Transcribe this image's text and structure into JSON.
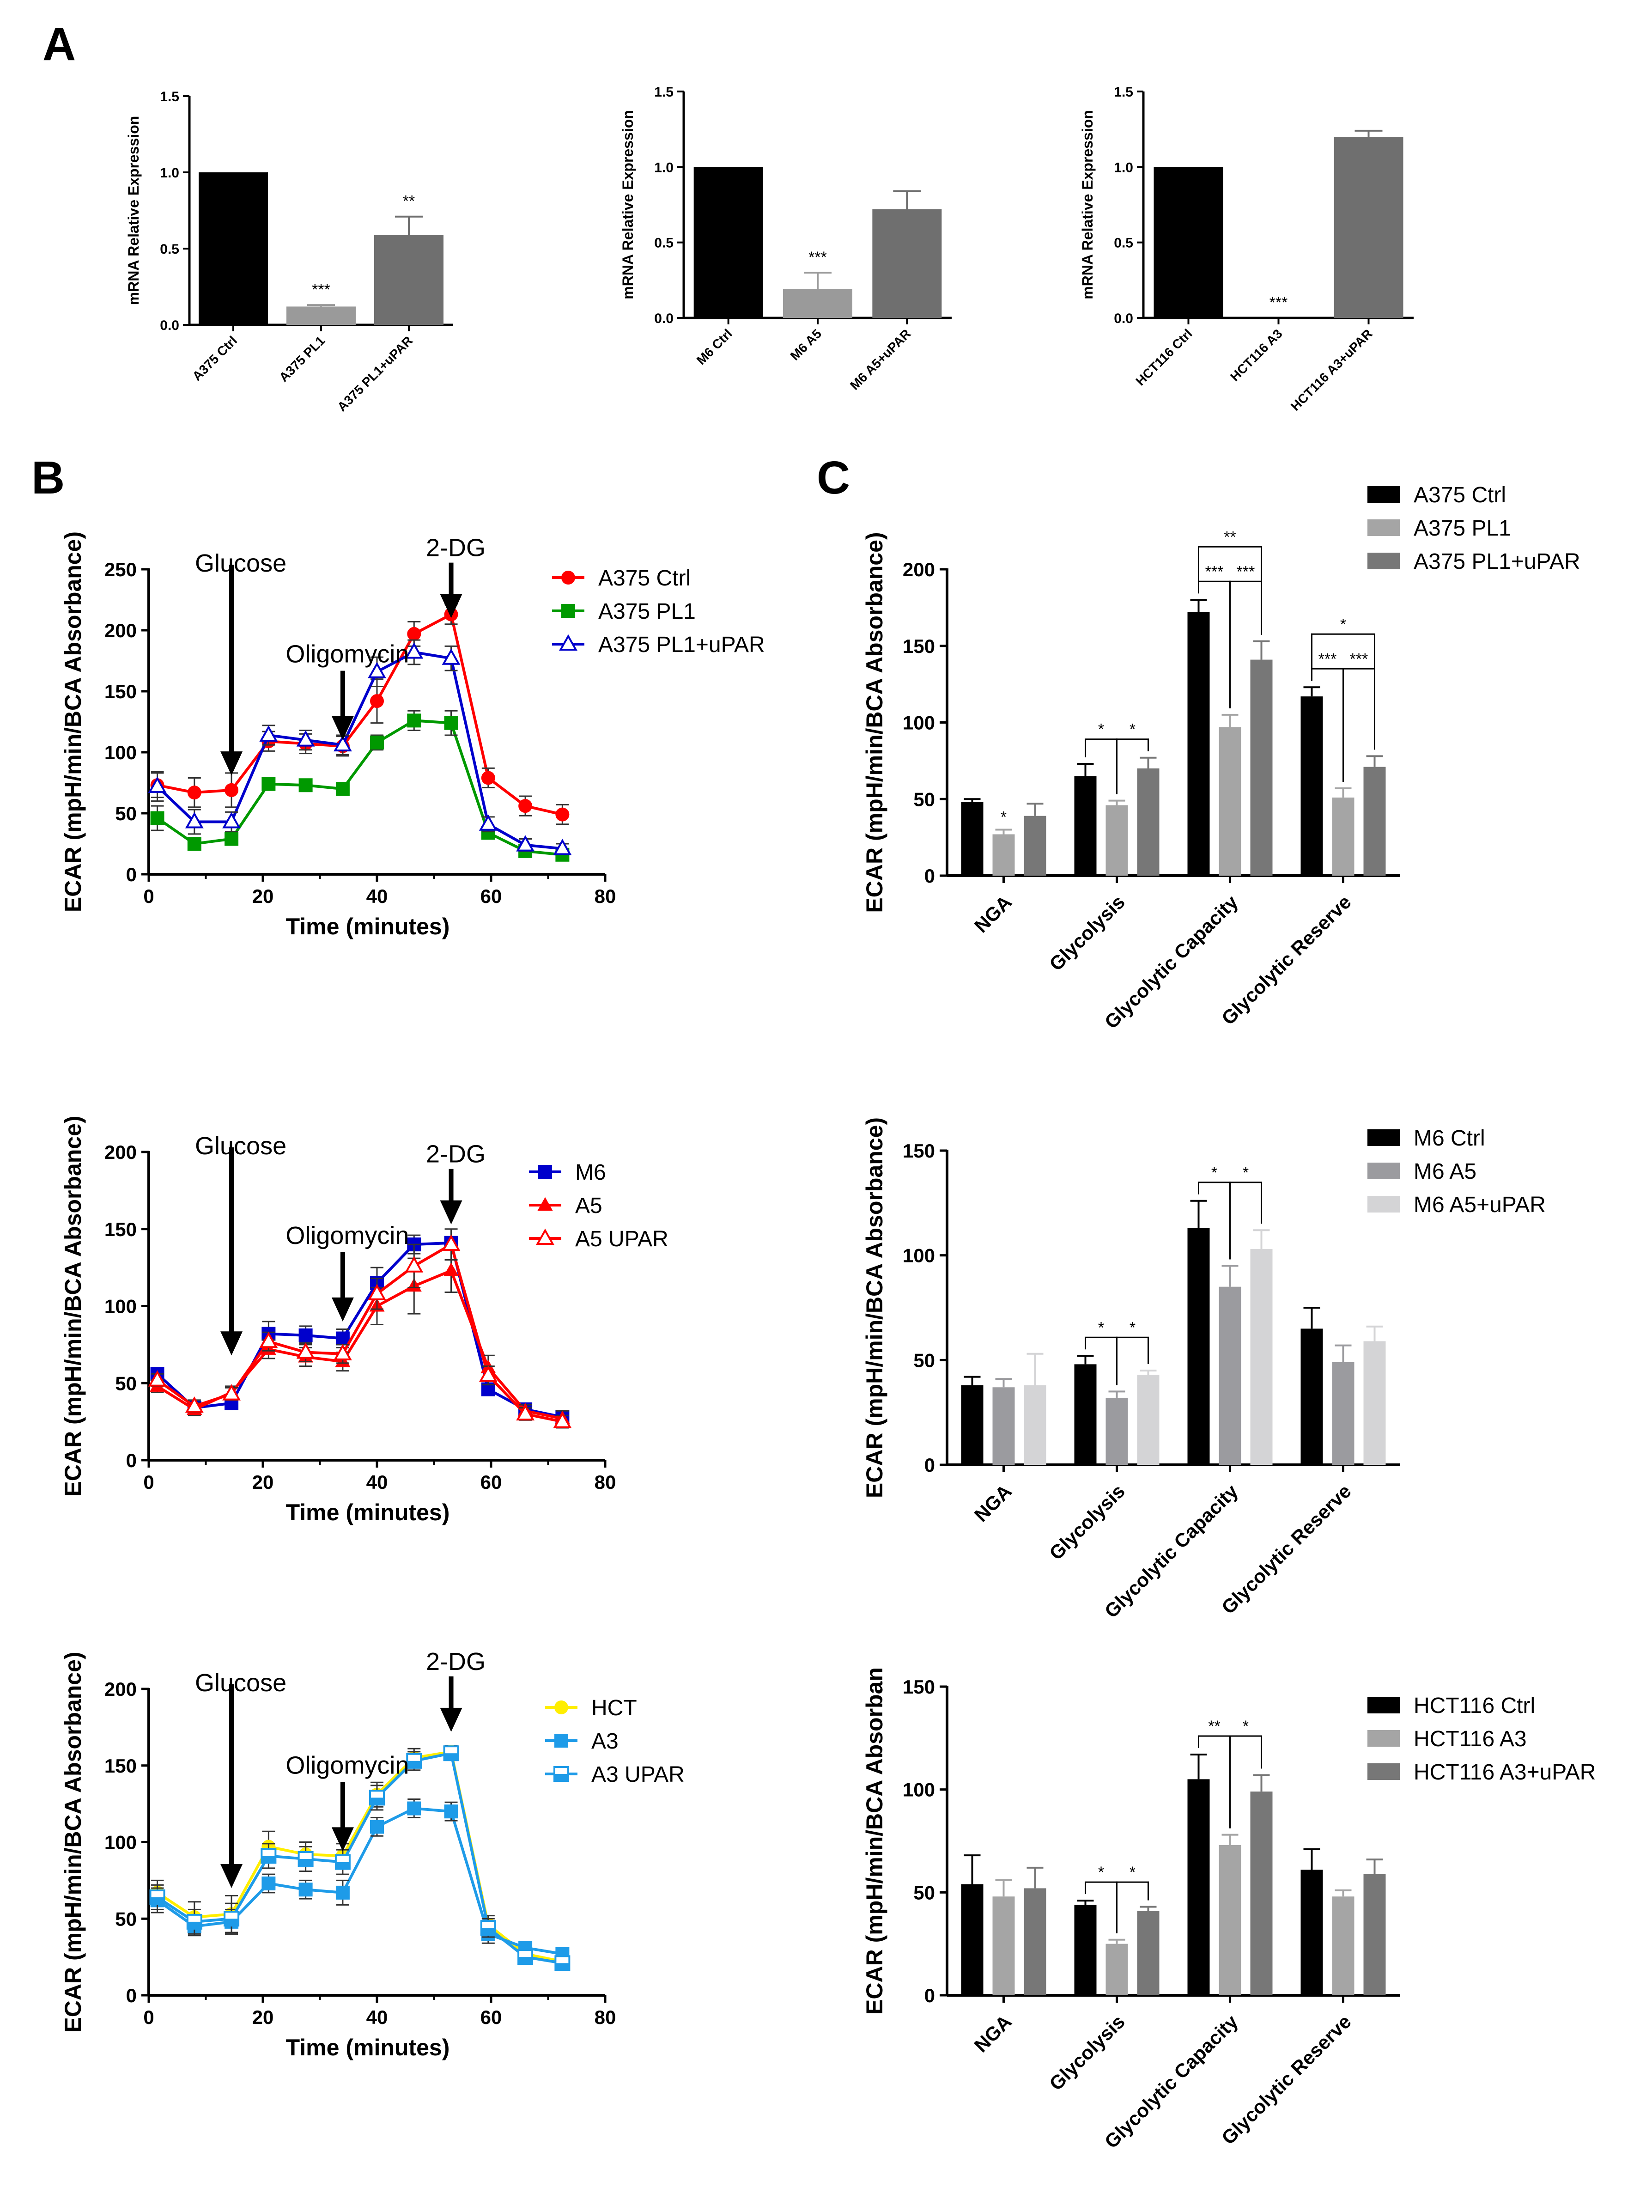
{
  "panel_labels": [
    "A",
    "B",
    "C"
  ],
  "chart_data": [
    {
      "id": "a1",
      "type": "bar",
      "ylabel": "mRNA Relative Expression",
      "ylim": [
        0,
        1.5
      ],
      "yticks": [
        "0.0",
        "0.5",
        "1.0",
        "1.5"
      ],
      "categories": [
        "A375 Ctrl",
        "A375 PL1",
        "A375 PL1+uPAR"
      ],
      "values": [
        1.0,
        0.12,
        0.59
      ],
      "errors": [
        0,
        0.01,
        0.12
      ],
      "colors": [
        "#000000",
        "#9a9a9a",
        "#6f6f6f"
      ],
      "significance": [
        "",
        "***",
        "**"
      ]
    },
    {
      "id": "a2",
      "type": "bar",
      "ylabel": "mRNA Relative Expression",
      "ylim": [
        0,
        1.5
      ],
      "yticks": [
        "0.0",
        "0.5",
        "1.0",
        "1.5"
      ],
      "categories": [
        "M6 Ctrl",
        "M6 A5",
        "M6 A5+uPAR"
      ],
      "values": [
        1.0,
        0.19,
        0.72
      ],
      "errors": [
        0,
        0.11,
        0.12
      ],
      "colors": [
        "#000000",
        "#9a9a9a",
        "#6f6f6f"
      ],
      "significance": [
        "",
        "***",
        ""
      ]
    },
    {
      "id": "a3",
      "type": "bar",
      "ylabel": "mRNA Relative Expression",
      "ylim": [
        0,
        1.5
      ],
      "yticks": [
        "0.0",
        "0.5",
        "1.0",
        "1.5"
      ],
      "categories": [
        "HCT116 Ctrl",
        "HCT116 A3",
        "HCT116 A3+uPAR"
      ],
      "values": [
        1.0,
        0.0,
        1.2
      ],
      "errors": [
        0,
        0,
        0.04
      ],
      "colors": [
        "#000000",
        "#9a9a9a",
        "#6f6f6f"
      ],
      "significance": [
        "",
        "***",
        ""
      ]
    },
    {
      "id": "b1",
      "type": "line",
      "xlabel": "Time (minutes)",
      "ylabel": "ECAR (mpH/min/BCA Absorbance)",
      "xlim": [
        0,
        80
      ],
      "ylim": [
        0,
        250
      ],
      "xticks": [
        "0",
        "20",
        "40",
        "60",
        "80"
      ],
      "yticks": [
        "0",
        "50",
        "100",
        "150",
        "200",
        "250"
      ],
      "x": [
        1.5,
        8,
        14.5,
        21,
        27.5,
        34,
        40,
        46.5,
        53,
        59.5,
        66,
        72.5
      ],
      "series": [
        {
          "name": "A375 Ctrl",
          "color": "#ff0000",
          "marker": "circle",
          "values": [
            73,
            67,
            69,
            109,
            107,
            105,
            142,
            197,
            213,
            79,
            56,
            49
          ],
          "errors": [
            10,
            12,
            14,
            8,
            8,
            8,
            18,
            10,
            8,
            8,
            8,
            8
          ]
        },
        {
          "name": "A375 PL1",
          "color": "#009900",
          "marker": "square",
          "values": [
            46,
            25,
            29,
            74,
            73,
            70,
            108,
            126,
            124,
            34,
            19,
            16
          ],
          "errors": [
            10,
            5,
            5,
            5,
            5,
            5,
            6,
            8,
            10,
            5,
            4,
            4
          ]
        },
        {
          "name": "A375 PL1+uPAR",
          "color": "#0000cc",
          "marker": "triangle-open",
          "values": [
            72,
            43,
            43,
            114,
            110,
            106,
            166,
            182,
            177,
            41,
            24,
            21
          ],
          "errors": [
            12,
            10,
            8,
            8,
            8,
            8,
            12,
            10,
            10,
            6,
            5,
            4
          ]
        }
      ],
      "annotations": [
        {
          "text": "Glucose",
          "x": 14.5,
          "y": 81
        },
        {
          "text": "Oligomycin",
          "x": 34,
          "y": 110
        },
        {
          "text": "2-DG",
          "x": 53,
          "y": 210
        }
      ]
    },
    {
      "id": "b2",
      "type": "line",
      "xlabel": "Time (minutes)",
      "ylabel": "ECAR (mpH/min/BCA Absorbance)",
      "xlim": [
        0,
        80
      ],
      "ylim": [
        0,
        200
      ],
      "xticks": [
        "0",
        "20",
        "40",
        "60",
        "80"
      ],
      "yticks": [
        "0",
        "50",
        "100",
        "150",
        "200"
      ],
      "x": [
        1.5,
        8,
        14.5,
        21,
        27.5,
        34,
        40,
        46.5,
        53,
        59.5,
        66,
        72.5
      ],
      "series": [
        {
          "name": "M6",
          "color": "#0000cc",
          "marker": "square",
          "values": [
            56,
            34,
            37,
            82,
            81,
            79,
            115,
            140,
            141,
            46,
            33,
            28
          ],
          "errors": [
            4,
            4,
            4,
            8,
            6,
            6,
            10,
            6,
            4,
            4,
            4,
            4
          ]
        },
        {
          "name": "A5",
          "color": "#ff0000",
          "marker": "triangle",
          "values": [
            48,
            33,
            44,
            72,
            67,
            64,
            100,
            113,
            123,
            60,
            32,
            27
          ],
          "errors": [
            4,
            4,
            4,
            6,
            6,
            6,
            12,
            18,
            14,
            8,
            4,
            5
          ]
        },
        {
          "name": "A5 UPAR",
          "color": "#ff0000",
          "marker": "triangle-open",
          "values": [
            52,
            35,
            43,
            77,
            70,
            69,
            108,
            126,
            140,
            55,
            30,
            25
          ],
          "errors": [
            4,
            4,
            4,
            6,
            6,
            6,
            10,
            14,
            10,
            6,
            4,
            4
          ]
        }
      ],
      "annotations": [
        {
          "text": "Glucose",
          "x": 14.5,
          "y": 68
        },
        {
          "text": "Oligomycin",
          "x": 34,
          "y": 90
        },
        {
          "text": "2-DG",
          "x": 53,
          "y": 153
        }
      ]
    },
    {
      "id": "b3",
      "type": "line",
      "xlabel": "Time (minutes)",
      "ylabel": "ECAR (mpH/min/BCA Absorbance)",
      "xlim": [
        0,
        80
      ],
      "ylim": [
        0,
        200
      ],
      "xticks": [
        "0",
        "20",
        "40",
        "60",
        "80"
      ],
      "yticks": [
        "0",
        "50",
        "100",
        "150",
        "200"
      ],
      "x": [
        1.5,
        8,
        14.5,
        21,
        27.5,
        34,
        40,
        46.5,
        53,
        59.5,
        66,
        72.5
      ],
      "series": [
        {
          "name": "HCT",
          "color": "#ffee00",
          "marker": "circle",
          "values": [
            67,
            51,
            53,
            97,
            92,
            91,
            131,
            155,
            159,
            46,
            27,
            22
          ],
          "errors": [
            8,
            10,
            12,
            10,
            8,
            8,
            8,
            6,
            4,
            6,
            4,
            4
          ]
        },
        {
          "name": "A3",
          "color": "#1e9be8",
          "marker": "square",
          "values": [
            62,
            45,
            48,
            73,
            69,
            67,
            110,
            122,
            120,
            40,
            31,
            27
          ],
          "errors": [
            8,
            6,
            8,
            6,
            6,
            8,
            6,
            6,
            6,
            6,
            4,
            4
          ]
        },
        {
          "name": "A3 UPAR",
          "color": "#1e9be8",
          "marker": "square-half",
          "values": [
            64,
            48,
            50,
            91,
            89,
            87,
            129,
            153,
            158,
            44,
            25,
            21
          ],
          "errors": [
            8,
            8,
            10,
            8,
            8,
            8,
            8,
            6,
            4,
            6,
            4,
            4
          ]
        }
      ],
      "annotations": [
        {
          "text": "Glucose",
          "x": 14.5,
          "y": 70
        },
        {
          "text": "Oligomycin",
          "x": 34,
          "y": 94
        },
        {
          "text": "2-DG",
          "x": 53,
          "y": 172
        }
      ]
    },
    {
      "id": "c1",
      "type": "bar",
      "ylabel": "ECAR (mpH/min/BCA Absorbance)",
      "ylim": [
        0,
        200
      ],
      "yticks": [
        "0",
        "50",
        "100",
        "150",
        "200"
      ],
      "categories": [
        "NGA",
        "Glycolysis",
        "Glycolytic Capacity",
        "Glycolytic Reserve"
      ],
      "series": [
        {
          "name": "A375 Ctrl",
          "color": "#000000",
          "values": [
            48,
            65,
            172,
            117
          ],
          "errors": [
            2,
            8,
            8,
            6
          ]
        },
        {
          "name": "A375 PL1",
          "color": "#a5a5a5",
          "values": [
            27,
            46,
            97,
            51
          ],
          "errors": [
            3,
            3,
            8,
            6
          ]
        },
        {
          "name": "A375 PL1+uPAR",
          "color": "#777777",
          "values": [
            39,
            70,
            141,
            71
          ],
          "errors": [
            8,
            7,
            12,
            7
          ]
        }
      ],
      "significance": [
        {
          "group": 0,
          "label": "*",
          "type": "star",
          "over": 1
        },
        {
          "group": 1,
          "label": "*",
          "type": "bracket",
          "from": 0,
          "to": 1,
          "level": 1
        },
        {
          "group": 1,
          "label": "*",
          "type": "bracket",
          "from": 1,
          "to": 2,
          "level": 1
        },
        {
          "group": 2,
          "label": "***",
          "type": "bracket",
          "from": 0,
          "to": 1,
          "level": 1
        },
        {
          "group": 2,
          "label": "***",
          "type": "bracket",
          "from": 1,
          "to": 2,
          "level": 1
        },
        {
          "group": 2,
          "label": "**",
          "type": "bracket",
          "from": 0,
          "to": 2,
          "level": 2
        },
        {
          "group": 3,
          "label": "***",
          "type": "bracket",
          "from": 0,
          "to": 1,
          "level": 1
        },
        {
          "group": 3,
          "label": "***",
          "type": "bracket",
          "from": 1,
          "to": 2,
          "level": 1
        },
        {
          "group": 3,
          "label": "*",
          "type": "bracket",
          "from": 0,
          "to": 2,
          "level": 2
        }
      ]
    },
    {
      "id": "c2",
      "type": "bar",
      "ylabel": "ECAR (mpH/min/BCA Absorbance)",
      "ylim": [
        0,
        150
      ],
      "yticks": [
        "0",
        "50",
        "100",
        "150"
      ],
      "categories": [
        "NGA",
        "Glycolysis",
        "Glycolytic Capacity",
        "Glycolytic Reserve"
      ],
      "series": [
        {
          "name": "M6 Ctrl",
          "color": "#000000",
          "values": [
            38,
            48,
            113,
            65
          ],
          "errors": [
            4,
            4,
            13,
            10
          ]
        },
        {
          "name": "M6 A5",
          "color": "#9b9b9f",
          "values": [
            37,
            32,
            85,
            49
          ],
          "errors": [
            4,
            3,
            10,
            8
          ]
        },
        {
          "name": "M6 A5+uPAR",
          "color": "#d4d4d6",
          "values": [
            38,
            43,
            103,
            59
          ],
          "errors": [
            15,
            2,
            9,
            7
          ]
        }
      ],
      "significance": [
        {
          "group": 1,
          "label": "*",
          "type": "bracket",
          "from": 0,
          "to": 1,
          "level": 1
        },
        {
          "group": 1,
          "label": "*",
          "type": "bracket",
          "from": 1,
          "to": 2,
          "level": 1
        },
        {
          "group": 2,
          "label": "*",
          "type": "bracket",
          "from": 0,
          "to": 1,
          "level": 1
        },
        {
          "group": 2,
          "label": "*",
          "type": "bracket",
          "from": 1,
          "to": 2,
          "level": 1
        }
      ]
    },
    {
      "id": "c3",
      "type": "bar",
      "ylabel": "ECAR (mpH/min/BCA Absorban",
      "ylim": [
        0,
        150
      ],
      "yticks": [
        "0",
        "50",
        "100",
        "150"
      ],
      "categories": [
        "NGA",
        "Glycolysis",
        "Glycolytic Capacity",
        "Glycolytic Reserve"
      ],
      "series": [
        {
          "name": "HCT116 Ctrl",
          "color": "#000000",
          "values": [
            54,
            44,
            105,
            61
          ],
          "errors": [
            14,
            2,
            12,
            10
          ]
        },
        {
          "name": "HCT116 A3",
          "color": "#a5a5a5",
          "values": [
            48,
            25,
            73,
            48
          ],
          "errors": [
            8,
            2,
            5,
            3
          ]
        },
        {
          "name": "HCT116 A3+uPAR",
          "color": "#777777",
          "values": [
            52,
            41,
            99,
            59
          ],
          "errors": [
            10,
            2,
            8,
            7
          ]
        }
      ],
      "significance": [
        {
          "group": 1,
          "label": "*",
          "type": "bracket",
          "from": 0,
          "to": 1,
          "level": 1
        },
        {
          "group": 1,
          "label": "*",
          "type": "bracket",
          "from": 1,
          "to": 2,
          "level": 1
        },
        {
          "group": 2,
          "label": "**",
          "type": "bracket",
          "from": 0,
          "to": 1,
          "level": 1
        },
        {
          "group": 2,
          "label": "*",
          "type": "bracket",
          "from": 1,
          "to": 2,
          "level": 1
        }
      ]
    }
  ]
}
